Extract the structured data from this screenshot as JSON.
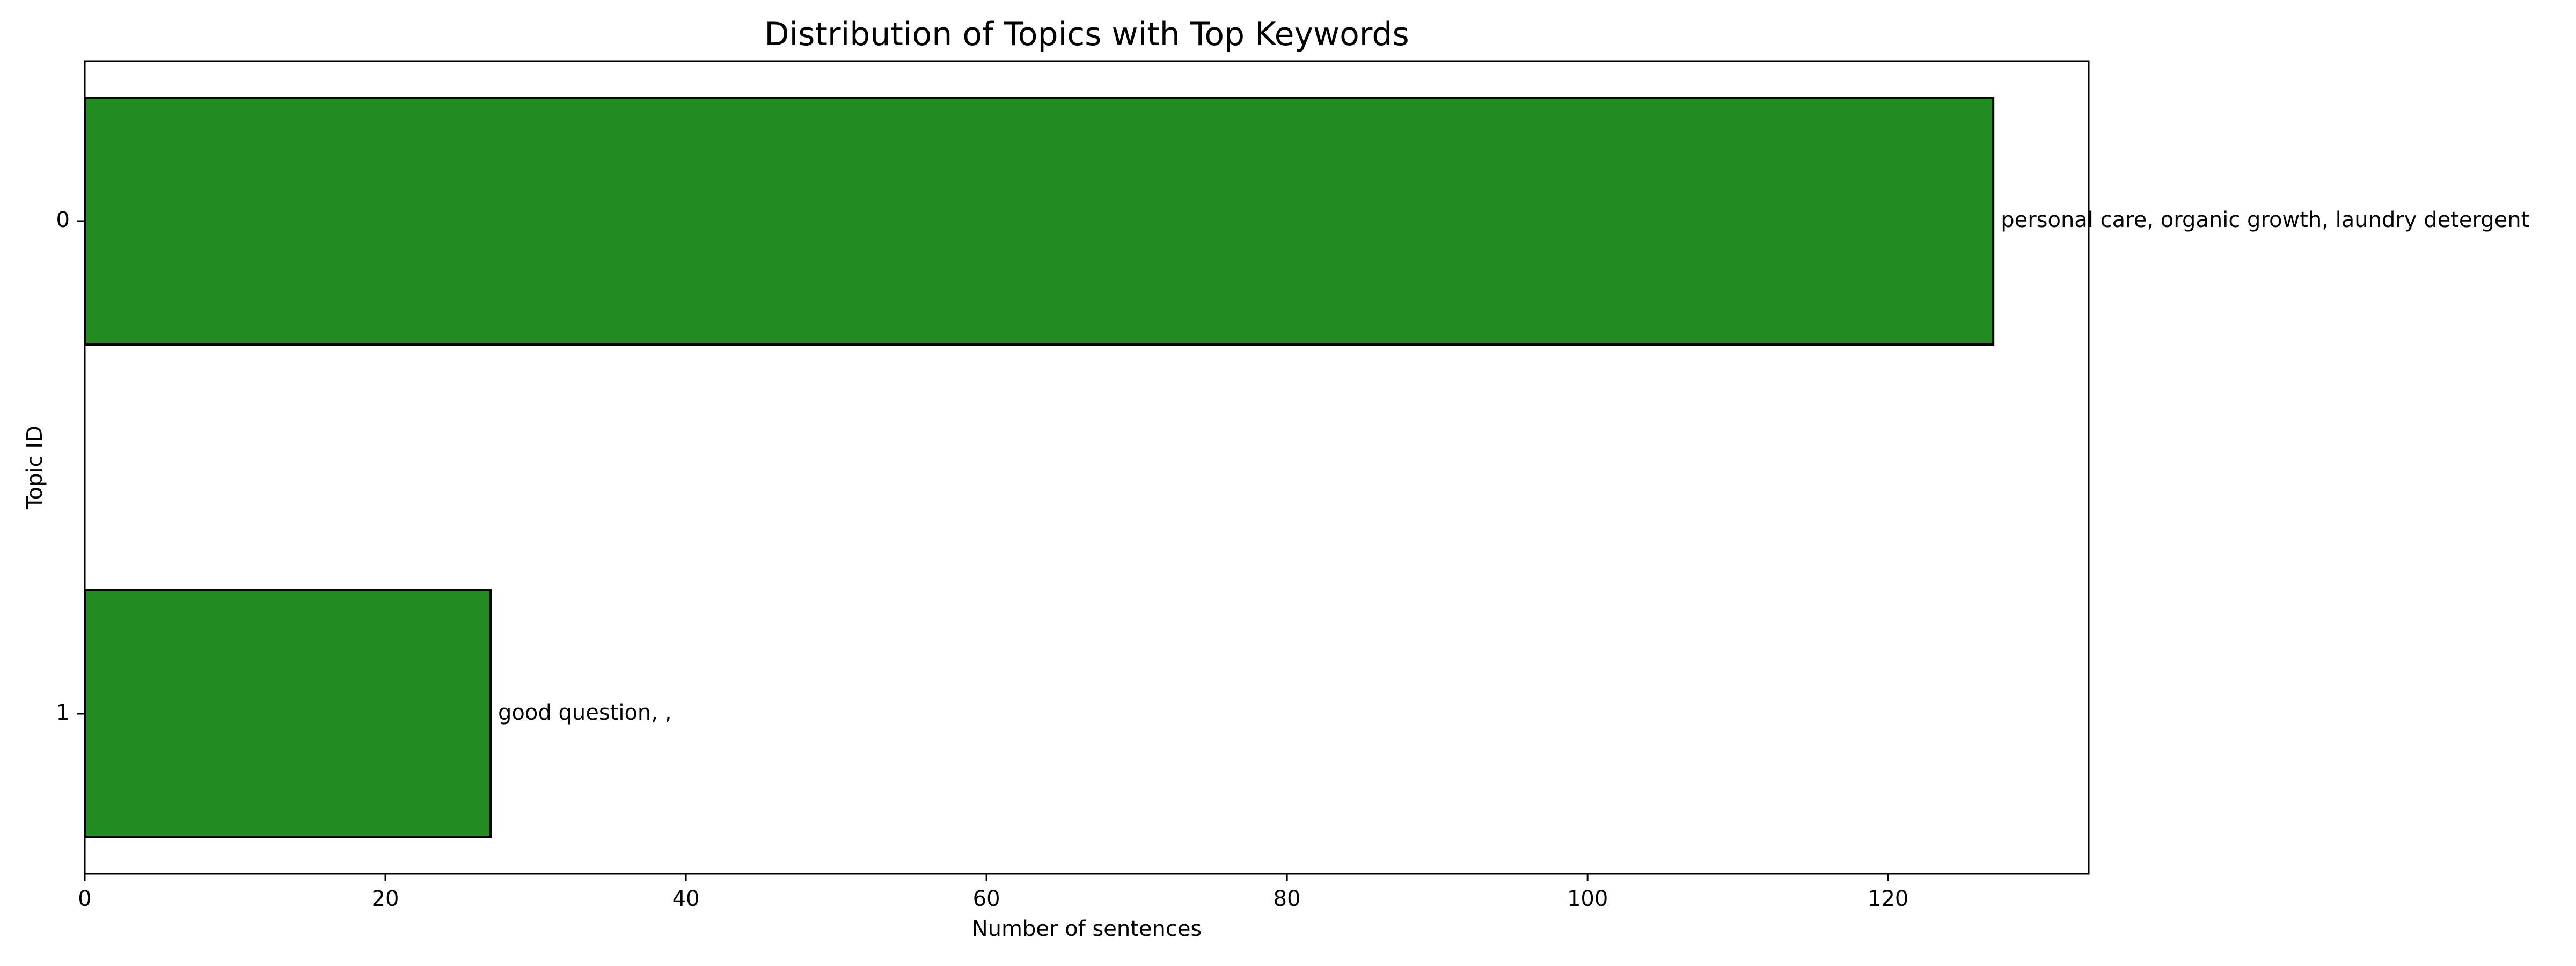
{
  "chart_data": {
    "type": "bar",
    "orientation": "horizontal",
    "title": "Distribution of Topics with Top Keywords",
    "xlabel": "Number of sentences",
    "ylabel": "Topic ID",
    "categories": [
      "0",
      "1"
    ],
    "values": [
      127,
      27
    ],
    "bar_labels": [
      "personal care, organic growth, laundry detergent",
      "good question, ,"
    ],
    "xlim": [
      0,
      133.35
    ],
    "xticks": [
      0,
      20,
      40,
      60,
      80,
      100,
      120
    ],
    "grid": false,
    "legend": "none",
    "colors": {
      "bar_fill": "#228B22",
      "bar_edge": "#000000",
      "axis": "#000000",
      "text": "#000000",
      "background": "#ffffff"
    }
  }
}
